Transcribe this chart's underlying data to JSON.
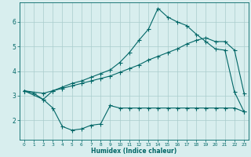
{
  "xlabel": "Humidex (Indice chaleur)",
  "bg_color": "#d8eeee",
  "line_color": "#006666",
  "grid_color": "#aacccc",
  "xlim": [
    -0.5,
    23.5
  ],
  "ylim": [
    1.2,
    6.8
  ],
  "yticks": [
    2,
    3,
    4,
    5,
    6
  ],
  "ytick_labels": [
    "2",
    "3",
    "4",
    "5",
    "6"
  ],
  "xtick_labels": [
    "0",
    "1",
    "2",
    "3",
    "4",
    "5",
    "6",
    "7",
    "8",
    "9",
    "10",
    "11",
    "12",
    "13",
    "14",
    "15",
    "16",
    "17",
    "18",
    "19",
    "20",
    "21",
    "22",
    "23"
  ],
  "line1_x": [
    0,
    1,
    2,
    3,
    4,
    5,
    6,
    7,
    8,
    9,
    10,
    11,
    12,
    13,
    14,
    15,
    16,
    17,
    18,
    19,
    20,
    21,
    22,
    23
  ],
  "line1_y": [
    3.2,
    3.1,
    2.85,
    2.5,
    1.75,
    1.6,
    1.65,
    1.8,
    1.85,
    2.6,
    2.5,
    2.5,
    2.5,
    2.5,
    2.5,
    2.5,
    2.5,
    2.5,
    2.5,
    2.5,
    2.5,
    2.5,
    2.5,
    2.35
  ],
  "line2_x": [
    0,
    2,
    3,
    4,
    5,
    6,
    7,
    8,
    9,
    10,
    11,
    12,
    13,
    14,
    15,
    16,
    17,
    18,
    19,
    20,
    21,
    22,
    23
  ],
  "line2_y": [
    3.2,
    3.1,
    3.2,
    3.3,
    3.4,
    3.5,
    3.6,
    3.7,
    3.8,
    3.95,
    4.1,
    4.25,
    4.45,
    4.6,
    4.75,
    4.9,
    5.1,
    5.25,
    5.35,
    5.2,
    5.2,
    4.85,
    3.1
  ],
  "line3_x": [
    0,
    2,
    3,
    4,
    5,
    6,
    7,
    8,
    9,
    10,
    11,
    12,
    13,
    14,
    15,
    16,
    17,
    18,
    19,
    20,
    21,
    22,
    23
  ],
  "line3_y": [
    3.2,
    2.85,
    3.2,
    3.35,
    3.5,
    3.6,
    3.75,
    3.9,
    4.05,
    4.35,
    4.75,
    5.25,
    5.7,
    6.55,
    6.2,
    6.0,
    5.85,
    5.5,
    5.2,
    4.9,
    4.85,
    3.15,
    2.35
  ]
}
